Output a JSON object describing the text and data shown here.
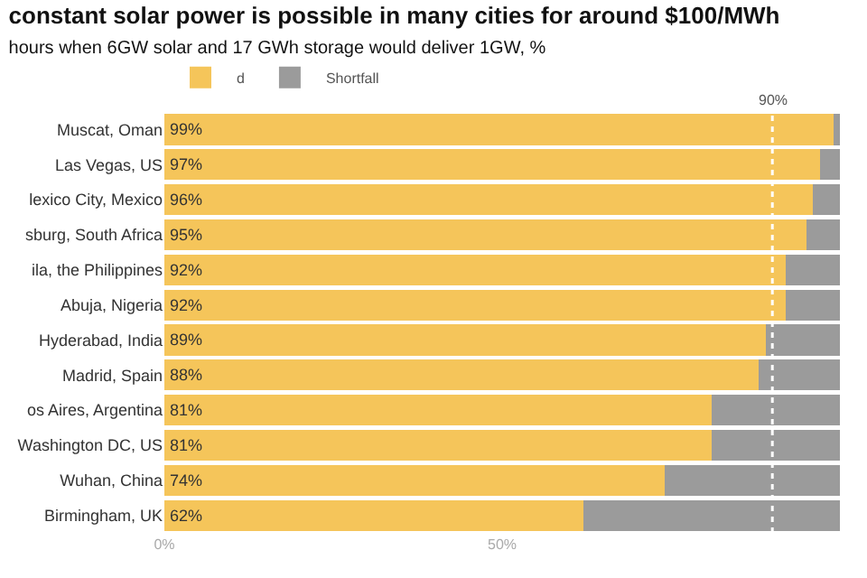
{
  "chart_data": {
    "type": "bar",
    "orientation": "horizontal",
    "stacked": true,
    "title": "constant solar power is possible in many cities for around $100/MWh",
    "subtitle": "hours when 6GW solar and 17 GWh storage would deliver 1GW, %",
    "categories": [
      "Muscat, Oman",
      "Las Vegas, US",
      "lexico City, Mexico",
      "sburg, South Africa",
      "ila, the Philippines",
      "Abuja, Nigeria",
      "Hyderabad, India",
      "Madrid, Spain",
      "os Aires, Argentina",
      "Washington DC, US",
      "Wuhan, China",
      "Birmingham, UK"
    ],
    "series": [
      {
        "name": "d",
        "color": "#f5c55a",
        "values": [
          99,
          97,
          96,
          95,
          92,
          92,
          89,
          88,
          81,
          81,
          74,
          62
        ],
        "value_labels": [
          "99%",
          "97%",
          "96%",
          "95%",
          "92%",
          "92%",
          "89%",
          "88%",
          "81%",
          "81%",
          "74%",
          "62%"
        ]
      },
      {
        "name": "Shortfall",
        "color": "#9b9b9b",
        "values": [
          1,
          3,
          4,
          5,
          8,
          8,
          11,
          12,
          19,
          19,
          26,
          38
        ]
      }
    ],
    "xlim": [
      0,
      100
    ],
    "xticks": [
      {
        "value": 0,
        "label": "0%"
      },
      {
        "value": 50,
        "label": "50%"
      }
    ],
    "ref_lines": [
      {
        "axis": "x",
        "value": 90,
        "label": "90%",
        "color": "#ffffff",
        "line_style": "dotted"
      }
    ],
    "legend": "top left"
  }
}
